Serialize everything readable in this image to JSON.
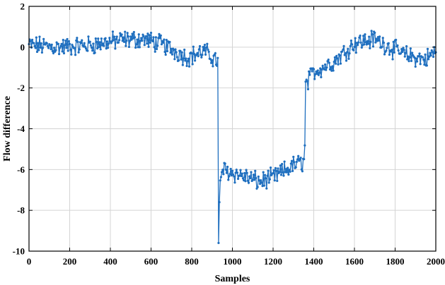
{
  "chart_data": {
    "type": "line",
    "title": "",
    "xlabel": "Samples",
    "ylabel": "Flow difference",
    "xlim": [
      0,
      2000
    ],
    "ylim": [
      -10,
      2
    ],
    "x_ticks": [
      0,
      200,
      400,
      600,
      800,
      1000,
      1200,
      1400,
      1600,
      1800,
      2000
    ],
    "y_ticks": [
      -10,
      -8,
      -6,
      -4,
      -2,
      0,
      2
    ],
    "grid": true,
    "legend": "none",
    "series": [
      {
        "color": "#1f6fbf",
        "marker": "dot",
        "profile": [
          {
            "x": 0,
            "y": 0.1
          },
          {
            "x": 150,
            "y": 0.0
          },
          {
            "x": 300,
            "y": 0.1
          },
          {
            "x": 450,
            "y": 0.35
          },
          {
            "x": 560,
            "y": 0.4
          },
          {
            "x": 650,
            "y": 0.15
          },
          {
            "x": 780,
            "y": -0.5
          },
          {
            "x": 860,
            "y": -0.2
          },
          {
            "x": 930,
            "y": -0.7
          },
          {
            "x": 932,
            "y": -9.6
          },
          {
            "x": 938,
            "y": -7.0
          },
          {
            "x": 950,
            "y": -6.0
          },
          {
            "x": 1050,
            "y": -6.3
          },
          {
            "x": 1130,
            "y": -6.6
          },
          {
            "x": 1200,
            "y": -6.4
          },
          {
            "x": 1300,
            "y": -5.8
          },
          {
            "x": 1355,
            "y": -5.6
          },
          {
            "x": 1360,
            "y": -1.9
          },
          {
            "x": 1400,
            "y": -1.2
          },
          {
            "x": 1500,
            "y": -0.7
          },
          {
            "x": 1600,
            "y": 0.2
          },
          {
            "x": 1700,
            "y": 0.4
          },
          {
            "x": 1850,
            "y": -0.4
          },
          {
            "x": 1950,
            "y": -0.6
          },
          {
            "x": 2000,
            "y": -0.2
          }
        ]
      }
    ]
  }
}
